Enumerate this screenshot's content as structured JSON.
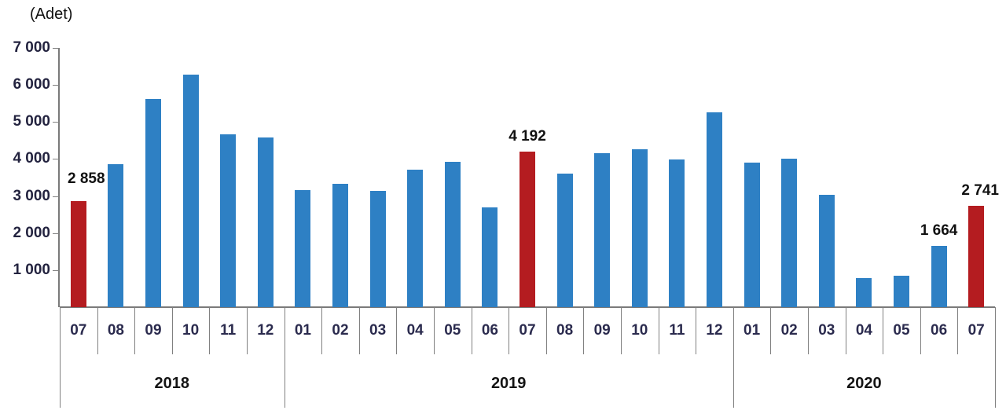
{
  "chart_data": {
    "type": "bar",
    "title": "(Adet)",
    "ylim": [
      0,
      7000
    ],
    "ytick_step": 1000,
    "ytick_labels_top_to_bottom": [
      "7 000",
      "6 000",
      "5 000",
      "4 000",
      "3 000",
      "2 000",
      "1 000"
    ],
    "grid": false,
    "legend": "none",
    "groups": [
      {
        "year": "2018",
        "months": [
          "07",
          "08",
          "09",
          "10",
          "11",
          "12"
        ],
        "values": [
          2858,
          3866,
          5615,
          6276,
          4672,
          4578
        ]
      },
      {
        "year": "2019",
        "months": [
          "01",
          "02",
          "03",
          "04",
          "05",
          "06",
          "07",
          "08",
          "09",
          "10",
          "11",
          "12"
        ],
        "values": [
          3168,
          3321,
          3129,
          3720,
          3925,
          2689,
          4192,
          3604,
          4163,
          4272,
          3981,
          5267
        ]
      },
      {
        "year": "2020",
        "months": [
          "01",
          "02",
          "03",
          "04",
          "05",
          "06",
          "07"
        ],
        "values": [
          3907,
          4005,
          3036,
          790,
          843,
          1664,
          2741
        ]
      }
    ],
    "highlighted_months": [
      "2018-07",
      "2019-07",
      "2020-07"
    ],
    "value_labels": [
      {
        "month": "2018-07",
        "text": "2 858"
      },
      {
        "month": "2019-07",
        "text": "4 192"
      },
      {
        "month": "2020-06",
        "text": "1 664"
      },
      {
        "month": "2020-07",
        "text": "2 741"
      }
    ],
    "colors": {
      "bar_blue": "#2e80c4",
      "bar_red": "#b41c20",
      "axis_gray": "#808080",
      "label_navy": "#2b2b4e",
      "text_black": "#111111"
    }
  }
}
